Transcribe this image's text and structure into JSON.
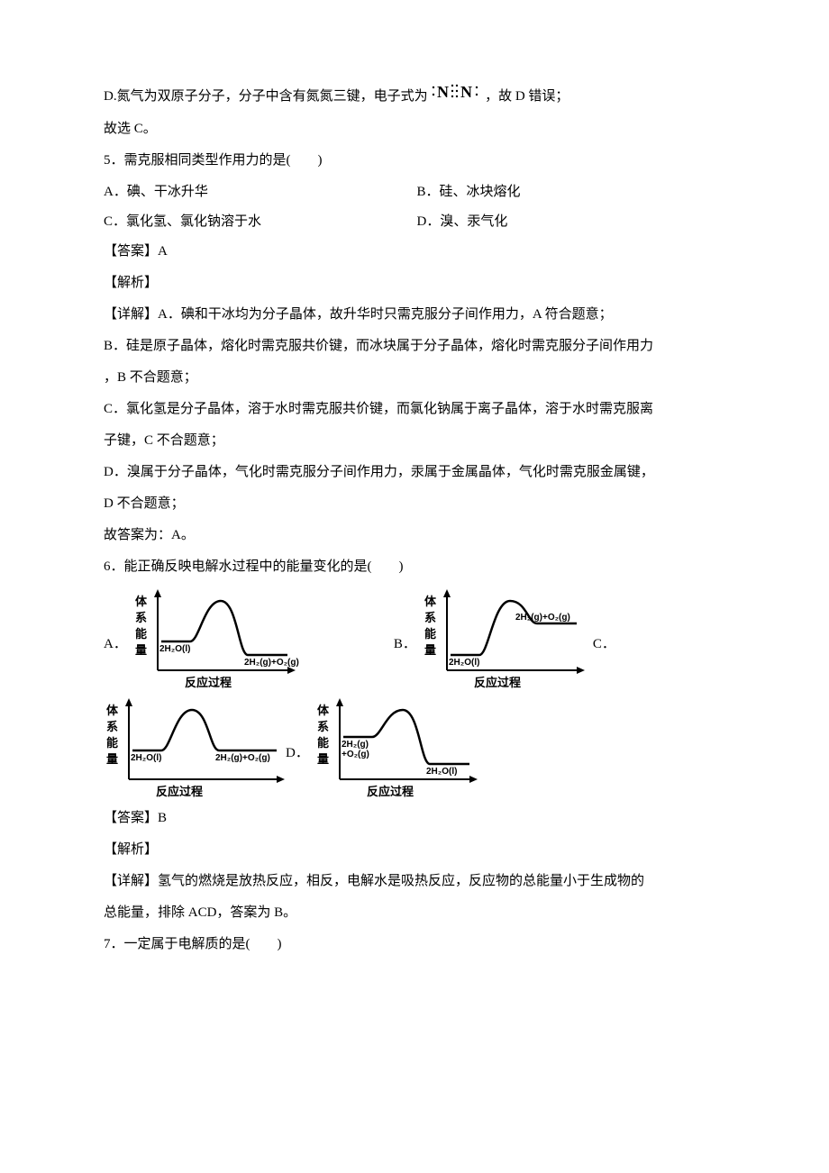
{
  "colors": {
    "text": "#000000",
    "background": "#ffffff",
    "axis": "#000000",
    "curve": "#000000"
  },
  "q4": {
    "optD": "D.氮气为双原子分子，分子中含有氮氮三键，电子式为",
    "optD_tail": "，故 D 错误；",
    "concl": "故选 C。"
  },
  "q5": {
    "stem": "5．需克服相同类型作用力的是(　　)",
    "optA": "A．碘、干冰升华",
    "optB": "B．硅、冰块熔化",
    "optC": "C．氯化氢、氯化钠溶于水",
    "optD": "D．溴、汞气化",
    "ans": "【答案】A",
    "exp": "【解析】",
    "detA": "【详解】A．碘和干冰均为分子晶体，故升华时只需克服分子间作用力，A 符合题意；",
    "detB1": "B．硅是原子晶体，熔化时需克服共价键，而冰块属于分子晶体，熔化时需克服分子间作用力",
    "detB2": "，B 不合题意；",
    "detC1": "C．氯化氢是分子晶体，溶于水时需克服共价键，而氯化钠属于离子晶体，溶于水时需克服离",
    "detC2": "子键，C 不合题意；",
    "detD1": "D．溴属于分子晶体，气化时需克服分子间作用力，汞属于金属晶体，气化时需克服金属键，",
    "detD2": "D 不合题意；",
    "concl": "故答案为：A。"
  },
  "q6": {
    "stem": "6．能正确反映电解水过程中的能量变化的是(　　)",
    "labels": {
      "A": "A．",
      "B": "B．",
      "C": "C．",
      "D": "D．"
    },
    "ans": "【答案】B",
    "exp": "【解析】",
    "det1": "【详解】氢气的燃烧是放热反应，相反，电解水是吸热反应，反应物的总能量小于生成物的",
    "det2": "总能量，排除 ACD，答案为 B。"
  },
  "q7": {
    "stem": "7．一定属于电解质的是(　　)"
  },
  "diagrams": {
    "ylabel": "体系能量",
    "xlabel": "反应过程",
    "reactant": "2H₂O(l)",
    "products": "2H₂(g)+O₂(g)",
    "prodL1": "2H₂(g)",
    "prodL2": "+O₂(g)",
    "chartA": {
      "startY": 60,
      "endY": 75,
      "peakY": 15,
      "startLabel": "2H₂O(l)",
      "endLabel": "2H₂(g)+O₂(g)"
    },
    "chartB": {
      "startY": 75,
      "endY": 40,
      "peakY": 15,
      "startLabel": "2H₂O(l)",
      "endLabel": "2H₂(g)+O₂(g)"
    },
    "chartC": {
      "startY": 60,
      "endY": 60,
      "peakY": 15,
      "startLabel": "2H₂O(l)",
      "endLabel": "2H₂(g)+O₂(g)"
    },
    "chartD": {
      "startY": 45,
      "endY": 75,
      "peakY": 15,
      "startLabel": "2H₂(g)+O₂(g)",
      "endLabel": "2H₂O(l)"
    },
    "axis_color": "#000000",
    "curve_width": 2.5,
    "axis_width": 2
  }
}
